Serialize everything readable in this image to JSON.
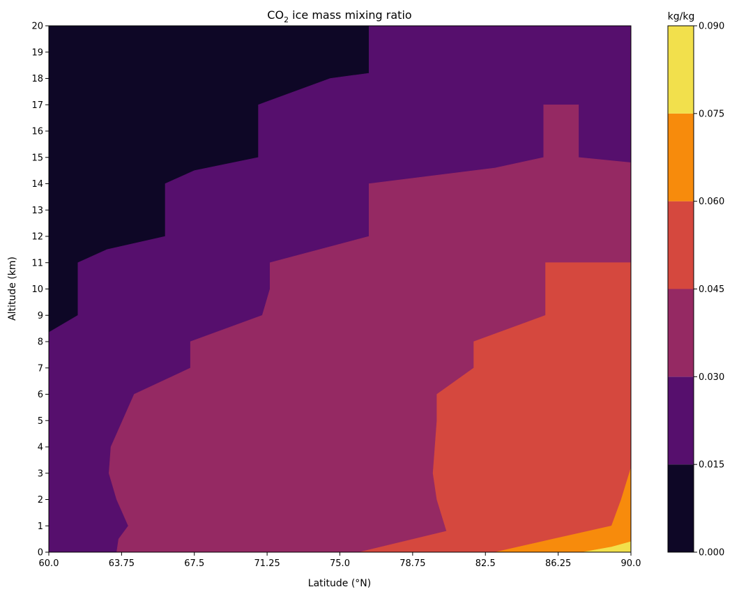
{
  "chart_data": {
    "type": "filled-contour",
    "title_prefix": "CO",
    "title_subscript": "2",
    "title_suffix": " ice mass mixing ratio",
    "xlabel": "Latitude (°N)",
    "ylabel": "Altitude (km)",
    "xlim": [
      60.0,
      90.0
    ],
    "ylim": [
      0,
      20
    ],
    "x_ticks": [
      "60.0",
      "63.75",
      "67.5",
      "71.25",
      "75.0",
      "78.75",
      "82.5",
      "86.25",
      "90.0"
    ],
    "y_ticks": [
      "0",
      "1",
      "2",
      "3",
      "4",
      "5",
      "6",
      "7",
      "8",
      "9",
      "10",
      "11",
      "12",
      "13",
      "14",
      "15",
      "16",
      "17",
      "18",
      "19",
      "20"
    ],
    "colorbar": {
      "label": "kg/kg",
      "levels": [
        0.0,
        0.015,
        0.03,
        0.045,
        0.06,
        0.075,
        0.09
      ],
      "tick_labels": [
        "0.000",
        "0.015",
        "0.030",
        "0.045",
        "0.060",
        "0.075",
        "0.090"
      ],
      "colors": [
        "#0e0726",
        "#560f6d",
        "#952963",
        "#d5483e",
        "#f78b0c",
        "#f2e04c"
      ]
    },
    "regions": [
      {
        "band": "0.030–0.045",
        "color": "#952963",
        "outline": [
          [
            63.5,
            0
          ],
          [
            63.6,
            0.5
          ],
          [
            64.1,
            1.0
          ],
          [
            63.5,
            2.0
          ],
          [
            63.1,
            3.0
          ],
          [
            63.2,
            4.0
          ],
          [
            63.8,
            5.0
          ],
          [
            64.4,
            6.0
          ],
          [
            67.3,
            7.0
          ],
          [
            67.3,
            8.0
          ],
          [
            71.0,
            9.0
          ],
          [
            71.4,
            10.0
          ],
          [
            71.4,
            11.0
          ],
          [
            76.5,
            12.0
          ],
          [
            76.5,
            13.0
          ],
          [
            76.5,
            14.0
          ],
          [
            83.0,
            14.6
          ],
          [
            85.5,
            15.0
          ],
          [
            85.5,
            16.0
          ],
          [
            85.5,
            17.0
          ],
          [
            87.3,
            17.0
          ],
          [
            87.3,
            16.0
          ],
          [
            87.3,
            15.0
          ],
          [
            90.0,
            14.8
          ],
          [
            90.0,
            0
          ]
        ]
      },
      {
        "band": "0.045–0.060",
        "color": "#d5483e",
        "outline": [
          [
            76.0,
            0
          ],
          [
            80.5,
            0.8
          ],
          [
            80.0,
            2.0
          ],
          [
            79.8,
            3.0
          ],
          [
            80.0,
            5.0
          ],
          [
            80.0,
            6.0
          ],
          [
            81.9,
            7.0
          ],
          [
            81.9,
            8.0
          ],
          [
            85.6,
            9.0
          ],
          [
            85.6,
            10.0
          ],
          [
            85.6,
            11.0
          ],
          [
            90.0,
            11.0
          ],
          [
            90.0,
            0
          ]
        ]
      },
      {
        "band": "0.060–0.075",
        "color": "#f78b0c",
        "outline": [
          [
            83.0,
            0
          ],
          [
            86.0,
            0.5
          ],
          [
            89.0,
            1.0
          ],
          [
            89.5,
            2.0
          ],
          [
            90.0,
            3.2
          ],
          [
            90.0,
            0
          ]
        ]
      },
      {
        "band": "0.075–0.090",
        "color": "#f2e04c",
        "outline": [
          [
            87.5,
            0
          ],
          [
            89.0,
            0.2
          ],
          [
            90.0,
            0.4
          ],
          [
            90.0,
            0
          ]
        ]
      }
    ]
  }
}
